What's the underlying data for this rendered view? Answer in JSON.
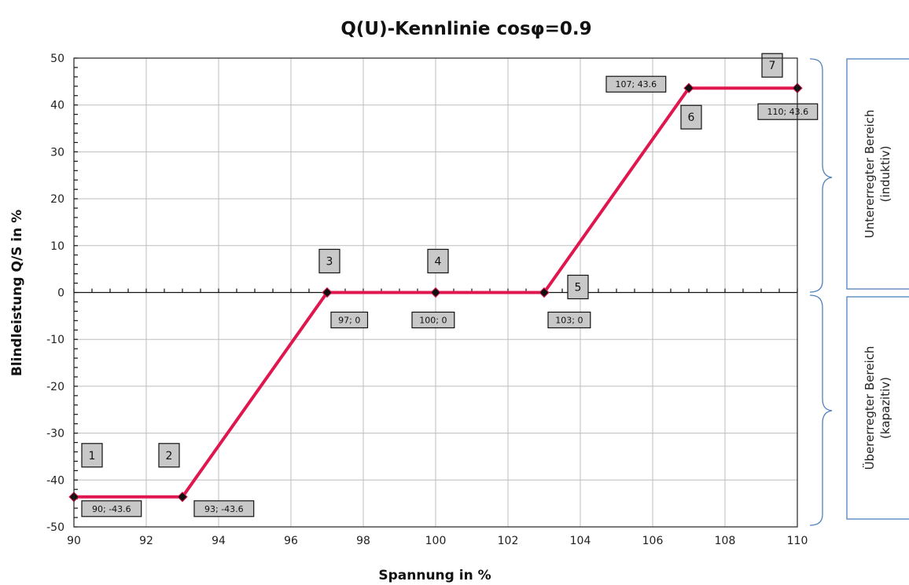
{
  "chart_data": {
    "type": "line",
    "title": "Q(U)-Kennlinie  cosφ=0.9",
    "xlabel": "Spannung in %",
    "ylabel": "Blindleistung Q/S in %",
    "xlim": [
      90,
      110
    ],
    "ylim": [
      -50,
      50
    ],
    "x_ticks": [
      "90",
      "92",
      "94",
      "96",
      "98",
      "100",
      "102",
      "104",
      "106",
      "108",
      "110"
    ],
    "y_ticks": [
      "50",
      "40",
      "30",
      "20",
      "10",
      "0",
      "-10",
      "-20",
      "-30",
      "-40",
      "-50"
    ],
    "grid": true,
    "series": [
      {
        "color": "#e0174f",
        "x": [
          90,
          93,
          97,
          100,
          103,
          107,
          110
        ],
        "y": [
          -43.6,
          -43.6,
          0,
          0,
          0,
          43.6,
          43.6
        ]
      }
    ],
    "point_numbers": [
      "1",
      "2",
      "3",
      "4",
      "5",
      "6",
      "7"
    ],
    "data_labels": [
      "90; -43.6",
      "93; -43.6",
      "97; 0",
      "100; 0",
      "103; 0",
      "107; 43.6",
      "110; 43.6"
    ],
    "regions": [
      {
        "line1": "Untererregter Bereich",
        "line2": "(induktiv)"
      },
      {
        "line1": "Übererregter Bereich",
        "line2": "(kapazitiv)"
      }
    ]
  }
}
